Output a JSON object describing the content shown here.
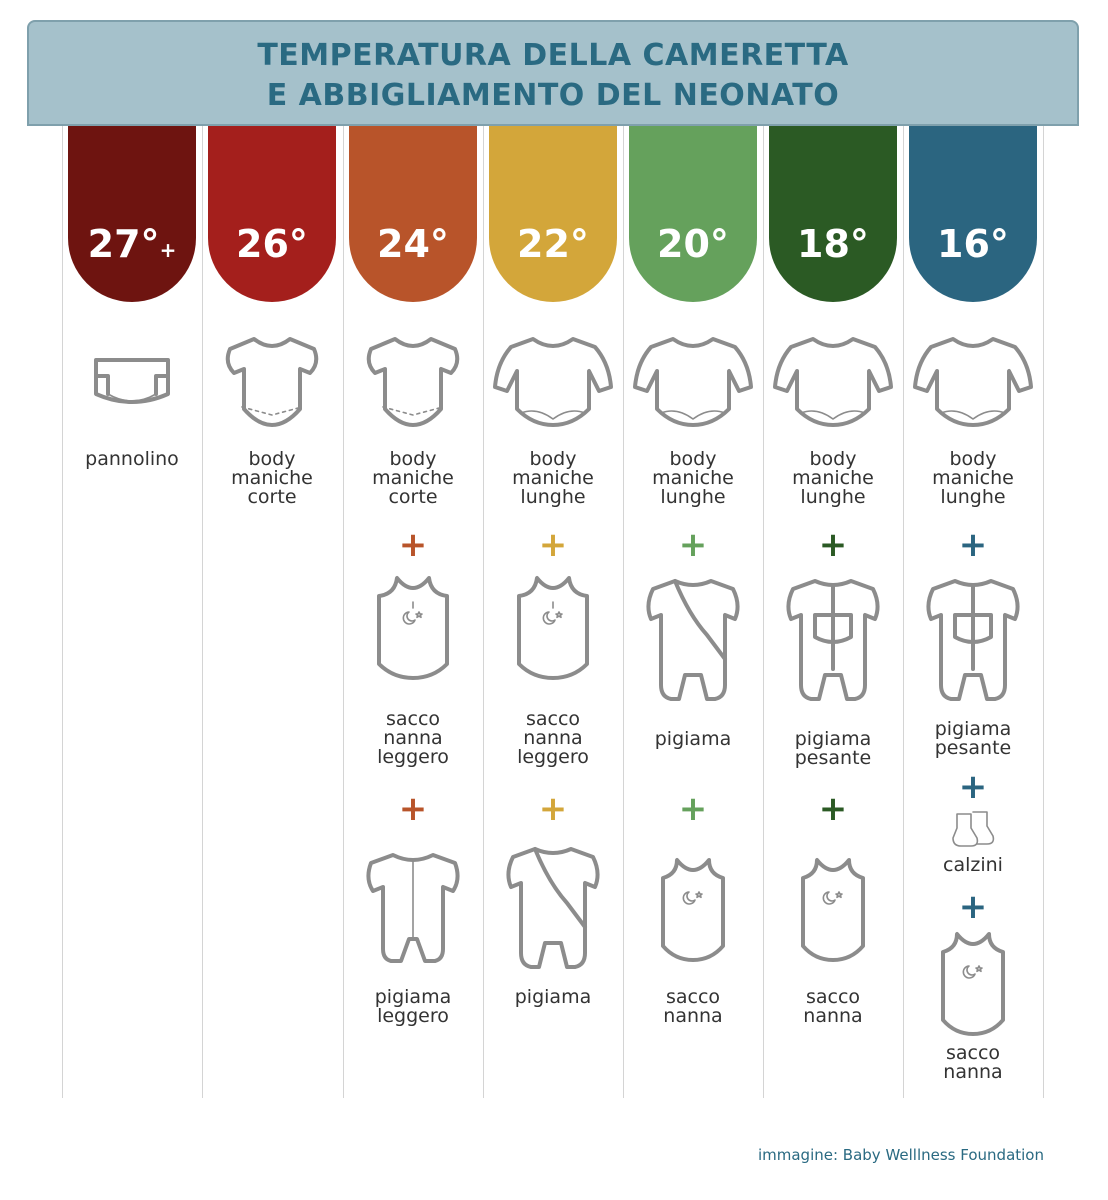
{
  "title_line1": "TEMPERATURA DELLA CAMERETTA",
  "title_line2": "E ABBIGLIAMENTO DEL NEONATO",
  "credit": "immagine: Baby Welllness Foundation",
  "columns": [
    {
      "temperature": "27°",
      "temperature_suffix": "+",
      "color": "#6e1410",
      "items": [
        {
          "icon": "diaper-icon",
          "label": "pannolino"
        }
      ]
    },
    {
      "temperature": "26°",
      "color": "#a41f1c",
      "items": [
        {
          "icon": "short-sleeve-bodysuit-icon",
          "label": "body\nmaniche\ncorte"
        }
      ]
    },
    {
      "temperature": "24°",
      "color": "#b8542a",
      "items": [
        {
          "icon": "short-sleeve-bodysuit-icon",
          "label": "body\nmaniche\ncorte"
        },
        {
          "icon": "light-sleeping-bag-icon",
          "label": "sacco\nnanna\nleggero"
        },
        {
          "icon": "light-pajamas-icon",
          "label": "pigiama\nleggero"
        }
      ]
    },
    {
      "temperature": "22°",
      "color": "#d3a63a",
      "items": [
        {
          "icon": "long-sleeve-bodysuit-icon",
          "label": "body\nmaniche\nlunghe"
        },
        {
          "icon": "light-sleeping-bag-icon",
          "label": "sacco\nnanna\nleggero"
        },
        {
          "icon": "pajamas-icon",
          "label": "pigiama"
        }
      ]
    },
    {
      "temperature": "20°",
      "color": "#65a15c",
      "items": [
        {
          "icon": "long-sleeve-bodysuit-icon",
          "label": "body\nmaniche\nlunghe"
        },
        {
          "icon": "pajamas-icon",
          "label": "pigiama"
        },
        {
          "icon": "sleeping-bag-icon",
          "label": "sacco\nnanna"
        }
      ]
    },
    {
      "temperature": "18°",
      "color": "#2b5a24",
      "items": [
        {
          "icon": "long-sleeve-bodysuit-icon",
          "label": "body\nmaniche\nlunghe"
        },
        {
          "icon": "heavy-pajamas-icon",
          "label": "pigiama\npesante"
        },
        {
          "icon": "sleeping-bag-icon",
          "label": "sacco\nnanna"
        }
      ]
    },
    {
      "temperature": "16°",
      "color": "#2b6580",
      "items": [
        {
          "icon": "long-sleeve-bodysuit-icon",
          "label": "body\nmaniche\nlunghe"
        },
        {
          "icon": "heavy-pajamas-icon",
          "label": "pigiama\npesante"
        },
        {
          "icon": "socks-icon",
          "label": "calzini"
        },
        {
          "icon": "sleeping-bag-icon",
          "label": "sacco\nnanna"
        }
      ]
    }
  ],
  "plus_sign": "+"
}
